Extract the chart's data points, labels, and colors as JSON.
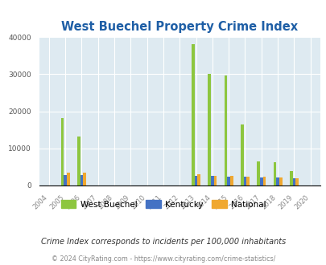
{
  "title": "West Buechel Property Crime Index",
  "subtitle": "Crime Index corresponds to incidents per 100,000 inhabitants",
  "footer": "© 2024 CityRating.com - https://www.cityrating.com/crime-statistics/",
  "years": [
    2004,
    2005,
    2006,
    2007,
    2008,
    2009,
    2010,
    2011,
    2012,
    2013,
    2014,
    2015,
    2016,
    2017,
    2018,
    2019,
    2020
  ],
  "west_buechel": [
    0,
    18200,
    13100,
    0,
    0,
    0,
    0,
    0,
    0,
    38000,
    30000,
    29700,
    16500,
    6500,
    6300,
    4000,
    0
  ],
  "kentucky": [
    0,
    2800,
    2800,
    0,
    0,
    0,
    0,
    0,
    0,
    2600,
    2500,
    2400,
    2300,
    2200,
    2100,
    2000,
    0
  ],
  "national": [
    0,
    3500,
    3500,
    0,
    0,
    0,
    0,
    0,
    0,
    3000,
    2700,
    2600,
    2400,
    2300,
    2200,
    2000,
    0
  ],
  "bar_width": 0.18,
  "ylim": [
    0,
    40000
  ],
  "yticks": [
    0,
    10000,
    20000,
    30000,
    40000
  ],
  "color_wb": "#8dc63f",
  "color_ky": "#4472c4",
  "color_nat": "#f0a830",
  "bg_color": "#deeaf1",
  "grid_color": "#ffffff",
  "title_color": "#1f5fa6",
  "subtitle_color": "#333333",
  "footer_color": "#888888"
}
